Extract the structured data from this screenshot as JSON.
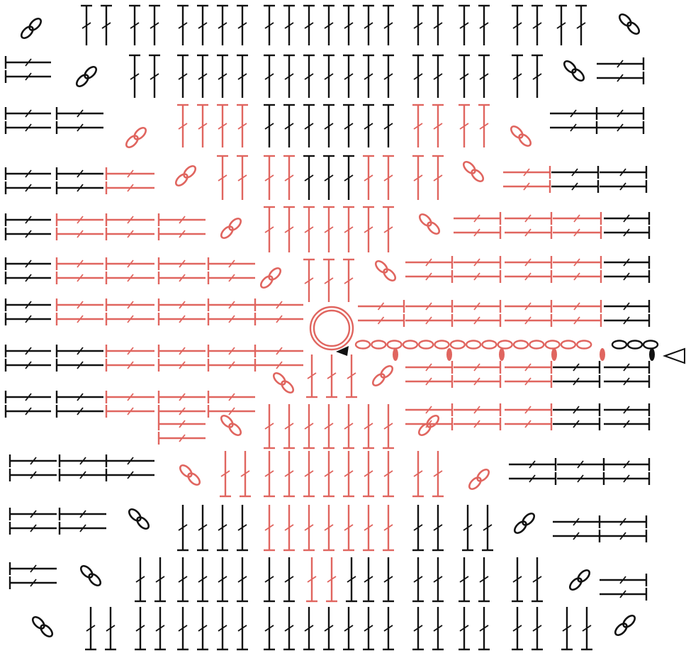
{
  "diagram": {
    "type": "crochet-granny-square-chart",
    "center_ring": "magic-ring",
    "colors": {
      "inner_rounds": "#e0655f",
      "outer_rounds": "#111111",
      "background": "#ffffff"
    },
    "symbols": {
      "stitch": "double-crochet",
      "corner": "chain-2-corner-space",
      "foundation": "chain",
      "slip": "slip-stitch",
      "start": "start-arrow",
      "join": "join-marker"
    }
  }
}
